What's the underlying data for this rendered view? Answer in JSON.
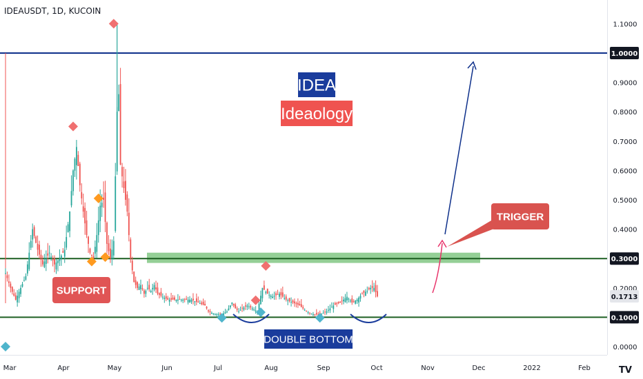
{
  "header": {
    "symbol": "IDEAUSDT, 1D, KUCOIN"
  },
  "footer": {
    "logo_text": "TV"
  },
  "colors": {
    "up": "#26a69a",
    "down": "#ef5350",
    "support_line": "#1b5e20",
    "target_line": "#0d2f8a",
    "zone": "#4caf50",
    "title_box": "#1a3c9c",
    "subtitle_box": "#ef5350",
    "support_box": "#e05555",
    "trigger_box": "#d9534f",
    "double_bottom_box": "#1a3c9c",
    "diamond_red": "#f07070",
    "diamond_orange": "#ff9a1f",
    "diamond_teal": "#4fb5cc"
  },
  "annotations": {
    "title": "IDEA",
    "subtitle": "Ideaology",
    "support": "SUPPORT",
    "trigger": "TRIGGER",
    "double_bottom": "DOUBLE BOTTOM"
  },
  "chart_data": {
    "type": "candlestick",
    "y_ticks": [
      "1.1000",
      "0.9000",
      "0.8000",
      "0.7000",
      "0.6000",
      "0.5000",
      "0.4000",
      "0.2000",
      "0.0000"
    ],
    "y_tick_values": [
      1.1,
      0.9,
      0.8,
      0.7,
      0.6,
      0.5,
      0.4,
      0.2,
      0.0
    ],
    "price_labels": [
      {
        "text": "1.0000",
        "value": 1.0,
        "style": "dark"
      },
      {
        "text": "0.3000",
        "value": 0.3,
        "style": "dark"
      },
      {
        "text": "0.1713",
        "value": 0.1713,
        "style": "light"
      },
      {
        "text": "0.1000",
        "value": 0.1,
        "style": "dark"
      }
    ],
    "x_ticks": [
      "Mar",
      "Apr",
      "May",
      "Jun",
      "Jul",
      "Aug",
      "Sep",
      "Oct",
      "Nov",
      "Dec",
      "2022",
      "Feb"
    ],
    "ylim": [
      -0.04,
      1.2
    ],
    "horizontal_lines": [
      {
        "value": 1.0,
        "color": "#0d2f8a"
      },
      {
        "value": 0.3,
        "color": "#1b5e20"
      },
      {
        "value": 0.1,
        "color": "#1b5e20"
      }
    ],
    "zone": {
      "low": 0.285,
      "high": 0.32
    },
    "series": [
      {
        "name": "IDEAUSDT",
        "close_path": [
          [
            0,
            0.25
          ],
          [
            3,
            0.2
          ],
          [
            6,
            0.16
          ],
          [
            9,
            0.2
          ],
          [
            12,
            0.24
          ],
          [
            16,
            0.4
          ],
          [
            19,
            0.33
          ],
          [
            22,
            0.28
          ],
          [
            26,
            0.32
          ],
          [
            29,
            0.28
          ],
          [
            32,
            0.3
          ],
          [
            35,
            0.33
          ],
          [
            38,
            0.46
          ],
          [
            40,
            0.6
          ],
          [
            42,
            0.68
          ],
          [
            44,
            0.55
          ],
          [
            46,
            0.46
          ],
          [
            48,
            0.38
          ],
          [
            50,
            0.32
          ],
          [
            52,
            0.3
          ],
          [
            54,
            0.38
          ],
          [
            56,
            0.48
          ],
          [
            58,
            0.5
          ],
          [
            60,
            0.35
          ],
          [
            62,
            0.3
          ],
          [
            64,
            0.36
          ],
          [
            66,
            0.8
          ],
          [
            67,
            0.86
          ],
          [
            68,
            0.62
          ],
          [
            70,
            0.54
          ],
          [
            72,
            0.46
          ],
          [
            74,
            0.3
          ],
          [
            76,
            0.22
          ],
          [
            78,
            0.2
          ],
          [
            80,
            0.21
          ],
          [
            82,
            0.18
          ],
          [
            84,
            0.2
          ],
          [
            86,
            0.19
          ],
          [
            88,
            0.21
          ],
          [
            90,
            0.18
          ],
          [
            93,
            0.17
          ],
          [
            96,
            0.16
          ],
          [
            100,
            0.16
          ],
          [
            105,
            0.16
          ],
          [
            110,
            0.16
          ],
          [
            114,
            0.15
          ],
          [
            118,
            0.14
          ],
          [
            120,
            0.12
          ],
          [
            124,
            0.11
          ],
          [
            128,
            0.11
          ],
          [
            131,
            0.12
          ],
          [
            134,
            0.15
          ],
          [
            136,
            0.13
          ],
          [
            138,
            0.12
          ],
          [
            140,
            0.13
          ],
          [
            143,
            0.14
          ],
          [
            146,
            0.13
          ],
          [
            149,
            0.12
          ],
          [
            152,
            0.2
          ],
          [
            155,
            0.18
          ],
          [
            158,
            0.17
          ],
          [
            162,
            0.18
          ],
          [
            166,
            0.16
          ],
          [
            170,
            0.15
          ],
          [
            174,
            0.14
          ],
          [
            178,
            0.12
          ],
          [
            182,
            0.11
          ],
          [
            186,
            0.11
          ],
          [
            190,
            0.12
          ],
          [
            194,
            0.14
          ],
          [
            198,
            0.15
          ],
          [
            202,
            0.17
          ],
          [
            205,
            0.15
          ],
          [
            208,
            0.16
          ],
          [
            211,
            0.18
          ],
          [
            214,
            0.19
          ],
          [
            216,
            0.2
          ],
          [
            218,
            0.2
          ],
          [
            220,
            0.171
          ]
        ]
      }
    ],
    "diamonds": [
      {
        "day": 64,
        "value": 1.1,
        "color": "red"
      },
      {
        "day": 40,
        "value": 0.75,
        "color": "red"
      },
      {
        "day": 55,
        "value": 0.505,
        "color": "orange"
      },
      {
        "day": 51,
        "value": 0.29,
        "color": "orange"
      },
      {
        "day": 59,
        "value": 0.305,
        "color": "orange"
      },
      {
        "day": 154,
        "value": 0.275,
        "color": "red"
      },
      {
        "day": 148,
        "value": 0.158,
        "color": "red"
      },
      {
        "day": 128,
        "value": 0.098,
        "color": "teal"
      },
      {
        "day": 151,
        "value": 0.117,
        "color": "teal"
      },
      {
        "day": 186,
        "value": 0.098,
        "color": "teal"
      },
      {
        "day": -2,
        "value": 0.0,
        "color": "teal"
      }
    ]
  }
}
